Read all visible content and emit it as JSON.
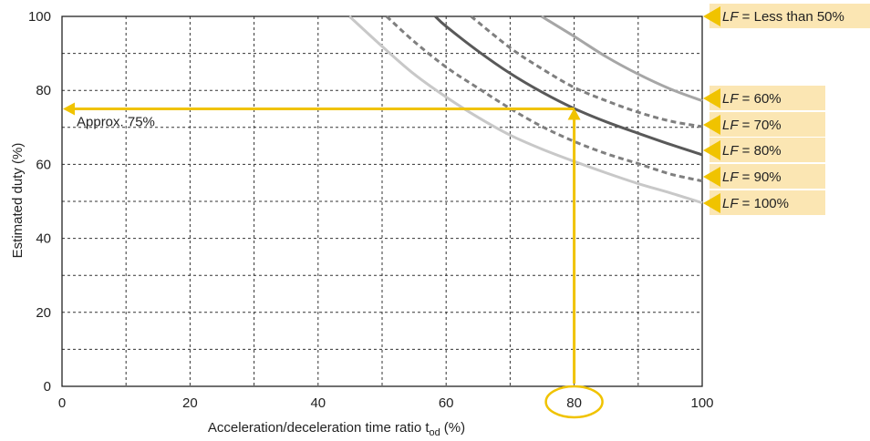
{
  "chart_data": {
    "type": "line",
    "xlabel": "Acceleration/deceleration time ratio t",
    "xlabel_sub": "od",
    "xlabel_unit": "(%)",
    "ylabel": "Estimated duty (%)",
    "xlim": [
      0,
      100
    ],
    "ylim": [
      0,
      100
    ],
    "x_ticks": [
      0,
      20,
      40,
      60,
      80,
      100
    ],
    "y_ticks": [
      0,
      20,
      40,
      60,
      80,
      100
    ],
    "grid": "dashed",
    "series": [
      {
        "name": "LF = Less than 50%",
        "lf_value": "Less than 50%",
        "x": [
          87.6,
          100
        ],
        "y": [
          100,
          100
        ],
        "style": "solid",
        "color": "#f0c300"
      },
      {
        "name": "LF = 60%",
        "lf_value": "60%",
        "x": [
          74.9,
          80,
          85,
          90,
          95,
          100
        ],
        "y": [
          100,
          94.6,
          89.1,
          84.4,
          80.4,
          77.2
        ],
        "style": "solid",
        "color": "#a6a6a6"
      },
      {
        "name": "LF = 70%",
        "lf_value": "70%",
        "x": [
          63.9,
          70,
          75,
          80,
          85,
          90,
          95,
          100
        ],
        "y": [
          100,
          91.5,
          85.8,
          80.8,
          77.2,
          74.1,
          71.7,
          70.2
        ],
        "style": "dashed",
        "color": "#7f7f7f"
      },
      {
        "name": "LF = 80%",
        "lf_value": "80%",
        "x": [
          58.3,
          60,
          65,
          70,
          75,
          80,
          85,
          90,
          95,
          100
        ],
        "y": [
          100,
          97.3,
          90.6,
          84.6,
          79.5,
          75.1,
          71.5,
          68.4,
          65.4,
          62.6
        ],
        "style": "solid",
        "color": "#595959"
      },
      {
        "name": "LF = 90%",
        "lf_value": "90%",
        "x": [
          50.7,
          55,
          60,
          65,
          70,
          75,
          80,
          85,
          90,
          95,
          100
        ],
        "y": [
          100,
          93.2,
          86.3,
          80.6,
          75.1,
          70.2,
          66.2,
          62.9,
          60.2,
          57.4,
          55.5
        ],
        "style": "dashed",
        "color": "#7f7f7f"
      },
      {
        "name": "LF = 100%",
        "lf_value": "100%",
        "x": [
          44.9,
          50,
          55,
          60,
          65,
          70,
          75,
          80,
          85,
          90,
          95,
          100
        ],
        "y": [
          100,
          91.9,
          84.4,
          78.2,
          72.7,
          67.9,
          64.1,
          60.8,
          57.7,
          54.8,
          52.3,
          49.6
        ],
        "style": "solid",
        "color": "#c8c8c8"
      }
    ],
    "lf_label_prefix": "LF",
    "annotation": {
      "text": "Approx. 75%",
      "x_value": 80,
      "y_value": 75,
      "color": "#f0c300"
    }
  }
}
